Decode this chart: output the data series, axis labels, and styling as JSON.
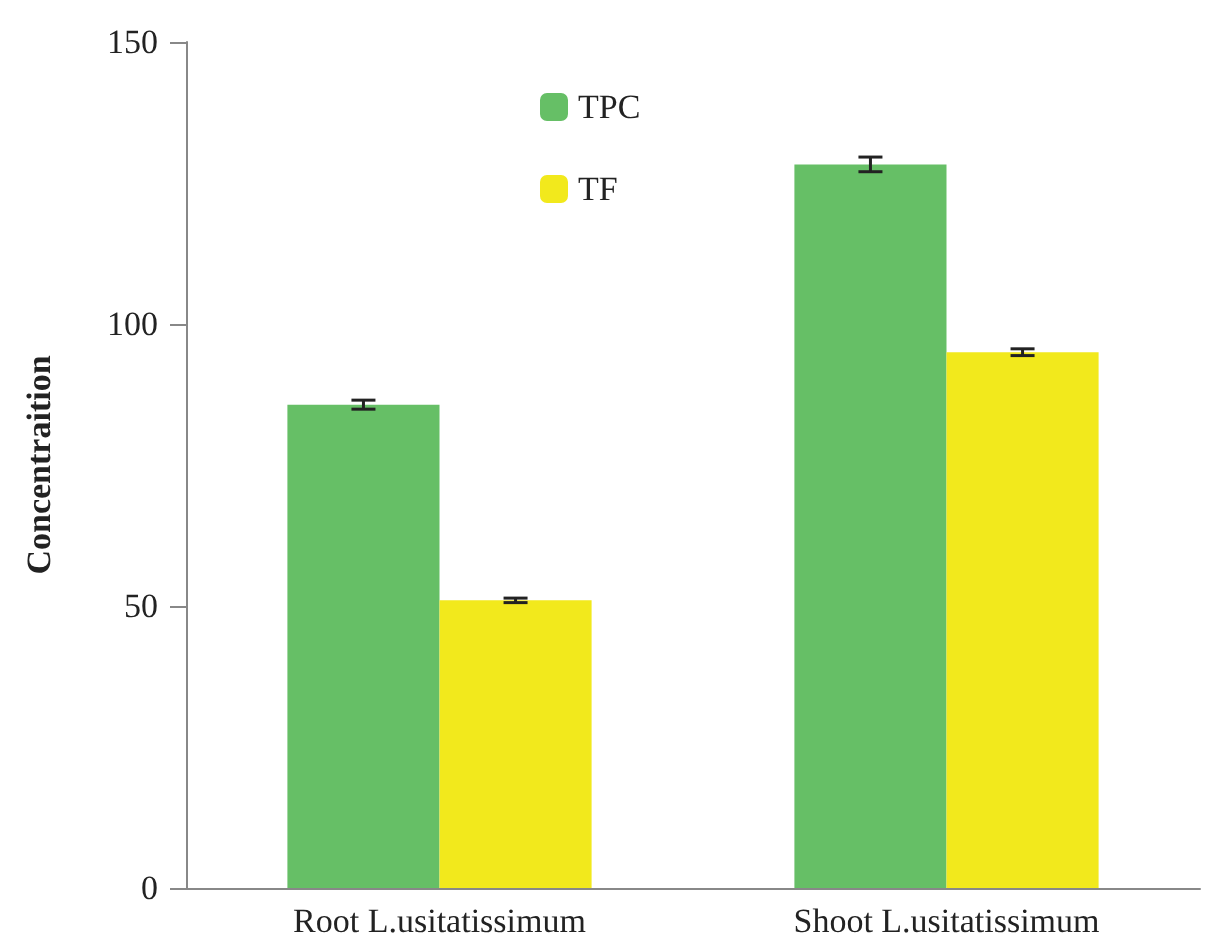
{
  "chart_data": {
    "type": "bar",
    "ylabel": "Concentraition",
    "categories": [
      "Root L.usitatissimum",
      "Shoot L.usitatissimum"
    ],
    "series": [
      {
        "name": "TPC",
        "color": "#66bf66",
        "values": [
          85.7,
          128.3
        ],
        "errors": [
          0.8,
          1.3
        ]
      },
      {
        "name": "TF",
        "color": "#f2e91c",
        "values": [
          51.0,
          95.0
        ],
        "errors": [
          0.4,
          0.6
        ]
      }
    ],
    "ylim": [
      0,
      150
    ],
    "yticks": [
      0,
      50,
      100,
      150
    ],
    "grid": false,
    "legend": "top"
  }
}
